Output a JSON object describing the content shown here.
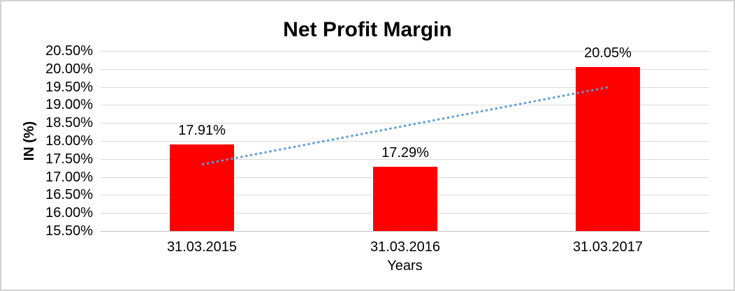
{
  "chart_data": {
    "type": "bar",
    "title": "Net Profit Margin",
    "xlabel": "Years",
    "ylabel": "IN (%)",
    "categories": [
      "31.03.2015",
      "31.03.2016",
      "31.03.2017"
    ],
    "values": [
      17.91,
      17.29,
      20.05
    ],
    "value_labels": [
      "17.91%",
      "17.29%",
      "20.05%"
    ],
    "ylim": [
      15.5,
      20.5
    ],
    "ytick_step": 0.5,
    "ytick_values": [
      20.5,
      20.0,
      19.5,
      19.0,
      18.5,
      18.0,
      17.5,
      17.0,
      16.5,
      16.0,
      15.5
    ],
    "ytick_labels": [
      "20.50%",
      "20.00%",
      "19.50%",
      "19.00%",
      "18.50%",
      "18.00%",
      "17.50%",
      "17.00%",
      "16.50%",
      "16.00%",
      "15.50%"
    ],
    "grid": true,
    "legend": "none",
    "colors": {
      "bar": "#ff0000",
      "gridline": "#d9d9d9",
      "axis_line": "#bfbfbf",
      "trendline": "#5b9bd5",
      "text": "#000000",
      "border": "#d2d2d2"
    },
    "trendline": {
      "type": "linear",
      "style": "dotted",
      "color": "#5b9bd5",
      "start_value": 17.35,
      "end_value": 19.49
    }
  }
}
